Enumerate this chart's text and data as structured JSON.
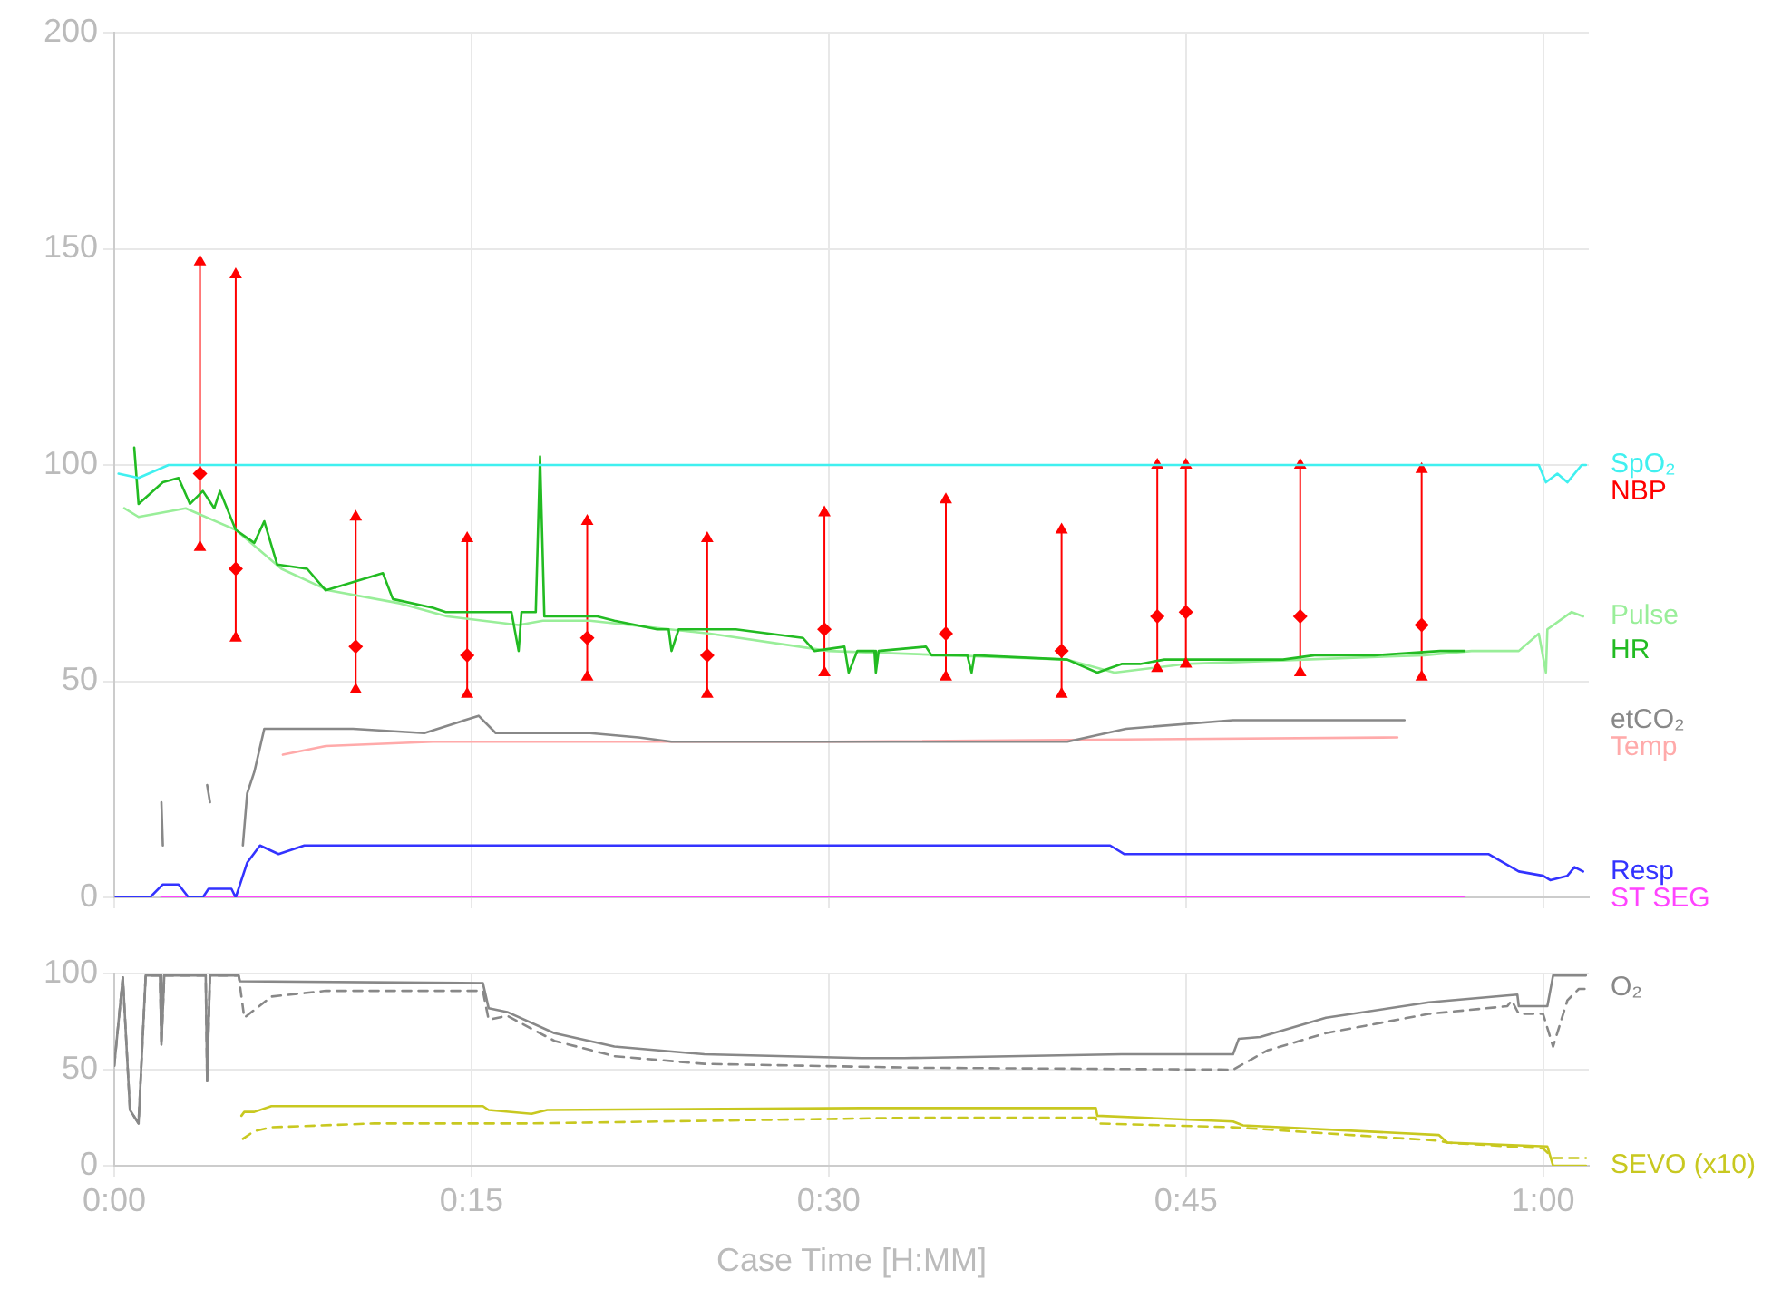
{
  "chart_data": [
    {
      "type": "line",
      "marker": "none",
      "line_style": "solid",
      "grid": true,
      "tick_labels": "y",
      "xlim": [
        0,
        1.032
      ],
      "xticks": [
        {
          "value": 0,
          "label": null
        },
        {
          "value": 0.25,
          "label": null
        },
        {
          "value": 0.5,
          "label": null
        },
        {
          "value": 0.75,
          "label": null
        },
        {
          "value": 1,
          "label": null
        }
      ],
      "ylim": [
        0,
        200
      ],
      "yticks": [
        0,
        50,
        100,
        150,
        200
      ],
      "series": [
        {
          "name": "SpO₂",
          "color": "#40f0f0",
          "x": [
            0.003,
            0.017,
            0.038,
            0.997,
            1.002,
            1.01,
            1.017,
            1.027,
            1.03
          ],
          "values": [
            98,
            97,
            100,
            100,
            96,
            98,
            96,
            100,
            100
          ]
        },
        {
          "name": "NBP",
          "color": "#ff0000",
          "type": "scatter",
          "marker": "diamond",
          "x": [
            0.06,
            0.085,
            0.169,
            0.247,
            0.331,
            0.415,
            0.497,
            0.582,
            0.663,
            0.73,
            0.75,
            0.83,
            0.915
          ],
          "values": [
            98,
            76,
            58,
            56,
            60,
            56,
            62,
            61,
            57,
            65,
            66,
            65,
            63
          ],
          "errors": [
            [
              81,
              147
            ],
            [
              60,
              144
            ],
            [
              48,
              88
            ],
            [
              47,
              83
            ],
            [
              51,
              87
            ],
            [
              47,
              83
            ],
            [
              52,
              89
            ],
            [
              51,
              92
            ],
            [
              47,
              85
            ],
            [
              53,
              100
            ],
            [
              54,
              100
            ],
            [
              52,
              100
            ],
            [
              51,
              99
            ]
          ]
        },
        {
          "color": "#ff0000",
          "type": "scatter",
          "marker": "triangle",
          "x": [
            0.06,
            0.085,
            0.169,
            0.247,
            0.331,
            0.415,
            0.497,
            0.582,
            0.663,
            0.73,
            0.75,
            0.83,
            0.915
          ],
          "values": [
            147,
            144,
            88,
            83,
            87,
            83,
            89,
            92,
            85,
            100,
            100,
            100,
            99
          ]
        },
        {
          "color": "#ff0000",
          "type": "scatter",
          "marker": "triangle",
          "x": [
            0.06,
            0.085,
            0.169,
            0.247,
            0.331,
            0.415,
            0.497,
            0.582,
            0.663,
            0.73,
            0.75,
            0.83,
            0.915
          ],
          "values": [
            81,
            60,
            48,
            47,
            51,
            47,
            52,
            51,
            47,
            53,
            54,
            52,
            51
          ]
        },
        {
          "name": "HR",
          "color": "#22bb22",
          "x": [
            0.014,
            0.017,
            0.034,
            0.045,
            0.053,
            0.062,
            0.07,
            0.074,
            0.085,
            0.098,
            0.105,
            0.114,
            0.135,
            0.148,
            0.188,
            0.195,
            0.223,
            0.232,
            0.278,
            0.283,
            0.285,
            0.295,
            0.298,
            0.301,
            0.338,
            0.35,
            0.38,
            0.388,
            0.39,
            0.395,
            0.435,
            0.482,
            0.49,
            0.511,
            0.514,
            0.52,
            0.532,
            0.533,
            0.535,
            0.568,
            0.572,
            0.597,
            0.6,
            0.602,
            0.667,
            0.688,
            0.705,
            0.718,
            0.735,
            0.818,
            0.84,
            0.882,
            0.928,
            0.945
          ],
          "values": [
            104,
            91,
            96,
            97,
            91,
            94,
            90,
            94,
            85,
            82,
            87,
            77,
            76,
            71,
            75,
            69,
            67,
            66,
            66,
            57,
            66,
            66,
            102,
            65,
            65,
            64,
            62,
            62,
            57,
            62,
            62,
            60,
            57,
            58,
            52,
            57,
            57,
            52,
            57,
            58,
            56,
            56,
            52,
            56,
            55,
            52,
            54,
            54,
            55,
            55,
            56,
            56,
            57,
            57
          ]
        },
        {
          "name": "Pulse",
          "color": "#99ee99",
          "x": [
            0.007,
            0.017,
            0.05,
            0.085,
            0.117,
            0.15,
            0.2,
            0.233,
            0.283,
            0.3,
            0.333,
            0.417,
            0.5,
            0.583,
            0.667,
            0.7,
            0.75,
            0.833,
            0.917,
            0.95,
            0.983,
            0.997,
            1.002,
            1.003,
            1.02,
            1.028
          ],
          "values": [
            90,
            88,
            90,
            85,
            76,
            71,
            68,
            65,
            63,
            64,
            64,
            61,
            57,
            56,
            55,
            52,
            54,
            55,
            56,
            57,
            57,
            61,
            52,
            62,
            66,
            65
          ]
        },
        {
          "name": "etCO₂",
          "color": "#888888",
          "x": [
            0.033,
            0.034,
            0.042,
            0.065,
            0.067,
            0.075,
            0.09,
            0.093,
            0.098,
            0.105,
            0.167,
            0.217,
            0.255,
            0.267,
            0.333,
            0.367,
            0.39,
            0.567,
            0.667,
            0.708,
            0.783,
            0.903
          ],
          "values": [
            22,
            12,
            null,
            26,
            22,
            null,
            12,
            24,
            29,
            39,
            39,
            38,
            42,
            38,
            38,
            37,
            36,
            36,
            36,
            39,
            41,
            41
          ]
        },
        {
          "name": "Temp",
          "color": "#ffaaaa",
          "x": [
            0.118,
            0.148,
            0.223,
            0.5,
            0.898
          ],
          "values": [
            33,
            35,
            36,
            36,
            37
          ]
        },
        {
          "name": "Resp",
          "color": "#3333ff",
          "x": [
            0.001,
            0.025,
            0.034,
            0.045,
            0.052,
            0.062,
            0.066,
            0.082,
            0.085,
            0.093,
            0.102,
            0.115,
            0.133,
            0.697,
            0.707,
            0.962,
            0.983,
            1.0,
            1.005,
            1.017,
            1.022,
            1.028
          ],
          "values": [
            0,
            0,
            3,
            3,
            0,
            0,
            2,
            2,
            0,
            8,
            12,
            10,
            12,
            12,
            10,
            10,
            6,
            5,
            4,
            5,
            7,
            6
          ]
        },
        {
          "name": "ST SEG",
          "color": "#ff44ff",
          "x": [
            0.033,
            0.945
          ],
          "values": [
            0,
            0
          ]
        }
      ]
    },
    {
      "type": "line",
      "marker": "none",
      "line_style": "solid",
      "grid": true,
      "xlabel": "Case Time [H:MM]",
      "xlim": [
        0,
        1.032
      ],
      "xticks": [
        {
          "value": 0,
          "label": "0:00"
        },
        {
          "value": 0.25,
          "label": "0:15"
        },
        {
          "value": 0.5,
          "label": "0:30"
        },
        {
          "value": 0.75,
          "label": "0:45"
        },
        {
          "value": 1,
          "label": "1:00"
        }
      ],
      "ylim": [
        0,
        100
      ],
      "yticks": [
        0,
        50,
        100
      ],
      "series": [
        {
          "name": "O₂",
          "color": "#888888",
          "x": [
            0,
            0.006,
            0.011,
            0.017,
            0.022,
            0.032,
            0.033,
            0.035,
            0.064,
            0.065,
            0.067,
            0.087,
            0.088,
            0.258,
            0.262,
            0.275,
            0.308,
            0.35,
            0.413,
            0.523,
            0.553,
            0.705,
            0.783,
            0.787,
            0.802,
            0.848,
            0.92,
            0.982,
            0.983,
            1.003,
            1.007,
            1.03
          ],
          "values": [
            52,
            98,
            29,
            22,
            99,
            99,
            63,
            99,
            99,
            44,
            99,
            99,
            96,
            95,
            82,
            80,
            69,
            62,
            58,
            56,
            56,
            58,
            58,
            66,
            67,
            77,
            85,
            89,
            83,
            83,
            99,
            99
          ]
        },
        {
          "color": "#888888",
          "line_style": "dashed",
          "x": [
            0,
            0.006,
            0.011,
            0.017,
            0.022,
            0.032,
            0.033,
            0.035,
            0.064,
            0.065,
            0.067,
            0.087,
            0.091,
            0.11,
            0.148,
            0.258,
            0.262,
            0.275,
            0.308,
            0.35,
            0.413,
            0.562,
            0.783,
            0.807,
            0.848,
            0.92,
            0.975,
            0.978,
            0.983,
            1.0,
            1.007,
            1.017,
            1.025,
            1.03
          ],
          "values": [
            52,
            98,
            29,
            22,
            99,
            99,
            63,
            99,
            99,
            44,
            99,
            99,
            77,
            88,
            91,
            91,
            76,
            78,
            65,
            57,
            53,
            51,
            50,
            60,
            69,
            79,
            83,
            86,
            79,
            79,
            62,
            86,
            92,
            92
          ]
        },
        {
          "name": "SEVO (x10)",
          "color": "#c8c820",
          "x": [
            0.089,
            0.091,
            0.098,
            0.11,
            0.258,
            0.262,
            0.292,
            0.303,
            0.523,
            0.687,
            0.688,
            0.783,
            0.79,
            0.927,
            0.933,
            1.003,
            1.007,
            1.03
          ],
          "values": [
            26,
            28,
            28,
            31,
            31,
            29,
            27,
            29,
            30,
            30,
            26,
            23,
            21,
            16,
            12,
            10,
            0,
            0
          ]
        },
        {
          "color": "#c8c820",
          "line_style": "dashed",
          "x": [
            0.09,
            0.098,
            0.11,
            0.182,
            0.292,
            0.562,
            0.687,
            0.688,
            0.783,
            0.927,
            0.933,
            1.0,
            1.007,
            1.03
          ],
          "values": [
            14,
            18,
            20,
            22,
            22,
            25,
            25,
            22,
            20,
            13,
            12,
            9,
            4,
            4
          ]
        }
      ]
    }
  ]
}
